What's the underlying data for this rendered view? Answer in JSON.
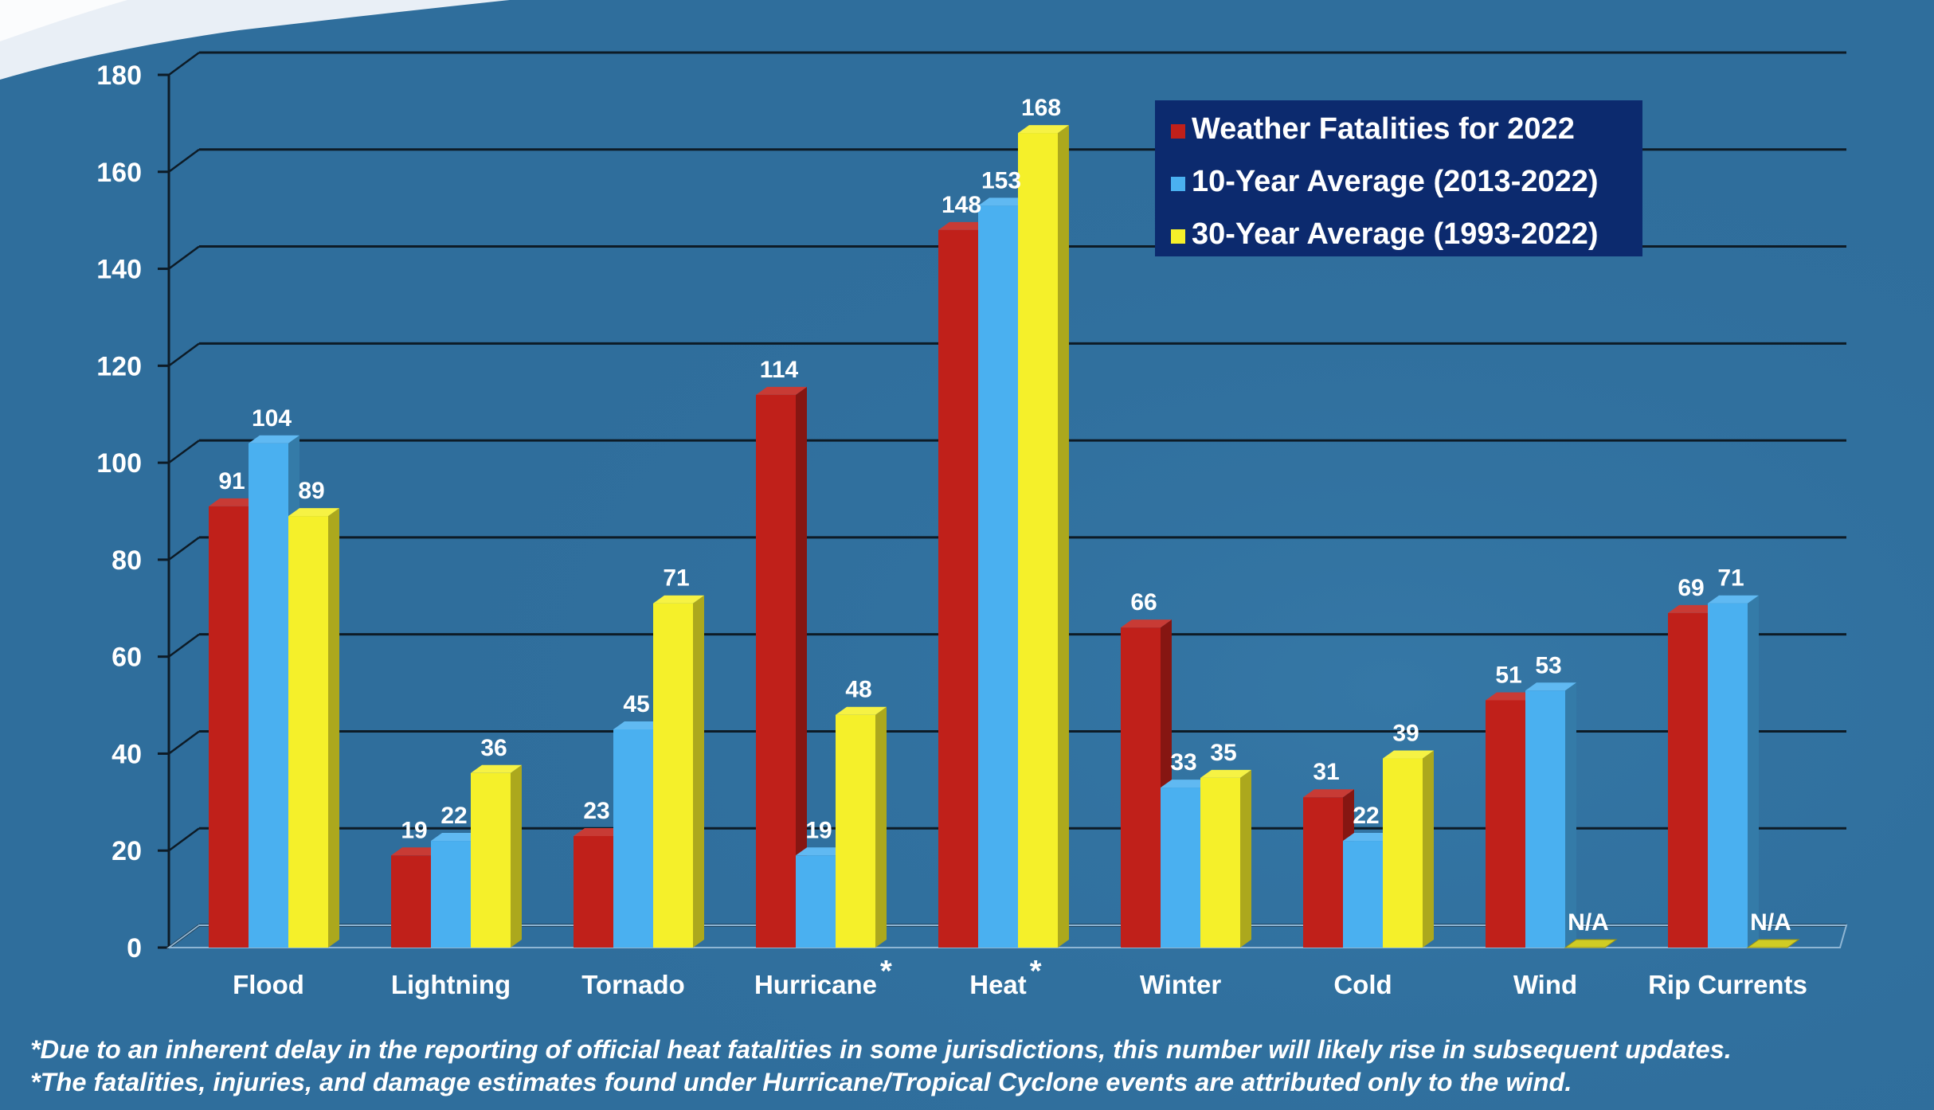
{
  "chart_data": {
    "type": "bar",
    "categories": [
      "Flood",
      "Lightning",
      "Tornado",
      "Hurricane",
      "Heat",
      "Winter",
      "Cold",
      "Wind",
      "Rip Currents"
    ],
    "category_markers": [
      "",
      "",
      "",
      "*",
      "*",
      "",
      "",
      "",
      ""
    ],
    "series": [
      {
        "name": "Weather Fatalities for 2022",
        "color": "#c0201a",
        "values": [
          91,
          19,
          23,
          114,
          148,
          66,
          31,
          51,
          69
        ],
        "labels": [
          "91",
          "19",
          "23",
          "114",
          "148",
          "66",
          "31",
          "51",
          "69"
        ]
      },
      {
        "name": "10-Year Average (2013-2022)",
        "color": "#4ab0f0",
        "values": [
          104,
          22,
          45,
          19,
          153,
          33,
          22,
          53,
          71
        ],
        "labels": [
          "104",
          "22",
          "45",
          "19",
          "153",
          "33",
          "22",
          "53",
          "71"
        ]
      },
      {
        "name": "30-Year Average (1993-2022)",
        "color": "#f5f02a",
        "values": [
          89,
          36,
          71,
          48,
          168,
          35,
          39,
          null,
          null
        ],
        "labels": [
          "89",
          "36",
          "71",
          "48",
          "168",
          "35",
          "39",
          "N/A",
          "N/A"
        ]
      }
    ],
    "ylim": [
      0,
      180
    ],
    "yticks": [
      0,
      20,
      40,
      60,
      80,
      100,
      120,
      140,
      160,
      180
    ],
    "grid": true,
    "legend": "top-right",
    "xlabel": "",
    "ylabel": "",
    "title": ""
  },
  "footnotes": [
    "*Due to an inherent delay in the reporting of official heat fatalities in some jurisdictions, this number will likely rise in subsequent updates.",
    "*The fatalities, injuries, and damage estimates found under Hurricane/Tropical Cyclone events are attributed only to the wind."
  ],
  "colors": {
    "background": "#2f6e9c",
    "gridline": "#0d1b26",
    "legend_box": "#0c2a6e"
  }
}
